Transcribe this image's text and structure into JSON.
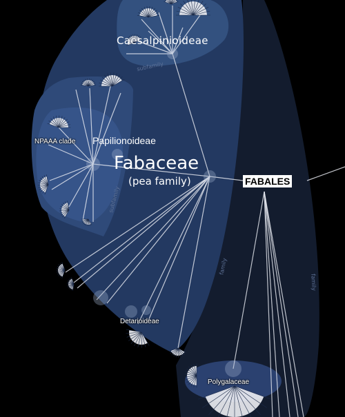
{
  "order": {
    "label": "FABALES",
    "rank_label": "family"
  },
  "family": {
    "name": "Fabaceae",
    "common_name": "(pea family)",
    "rank_label": "family"
  },
  "subfamilies": {
    "caesalpinioideae": {
      "name": "Caesalpinioideae",
      "rank_label": "subfamily"
    },
    "papilionoideae": {
      "name": "Papilionoideae",
      "rank_label": "subfamily"
    },
    "detarioideae": {
      "name": "Detarioideae"
    }
  },
  "clades": {
    "npaaa": {
      "name": "NPAAA clade"
    }
  },
  "other_families": {
    "polygalaceae": {
      "name": "Polygalaceae"
    }
  },
  "colors": {
    "background": "#000000",
    "order_hull": "#131c2e",
    "family_hull": "#233961",
    "subfamily_hull": "#33517f",
    "fan": "#eef0f4",
    "branch": "#e6e9f0"
  }
}
